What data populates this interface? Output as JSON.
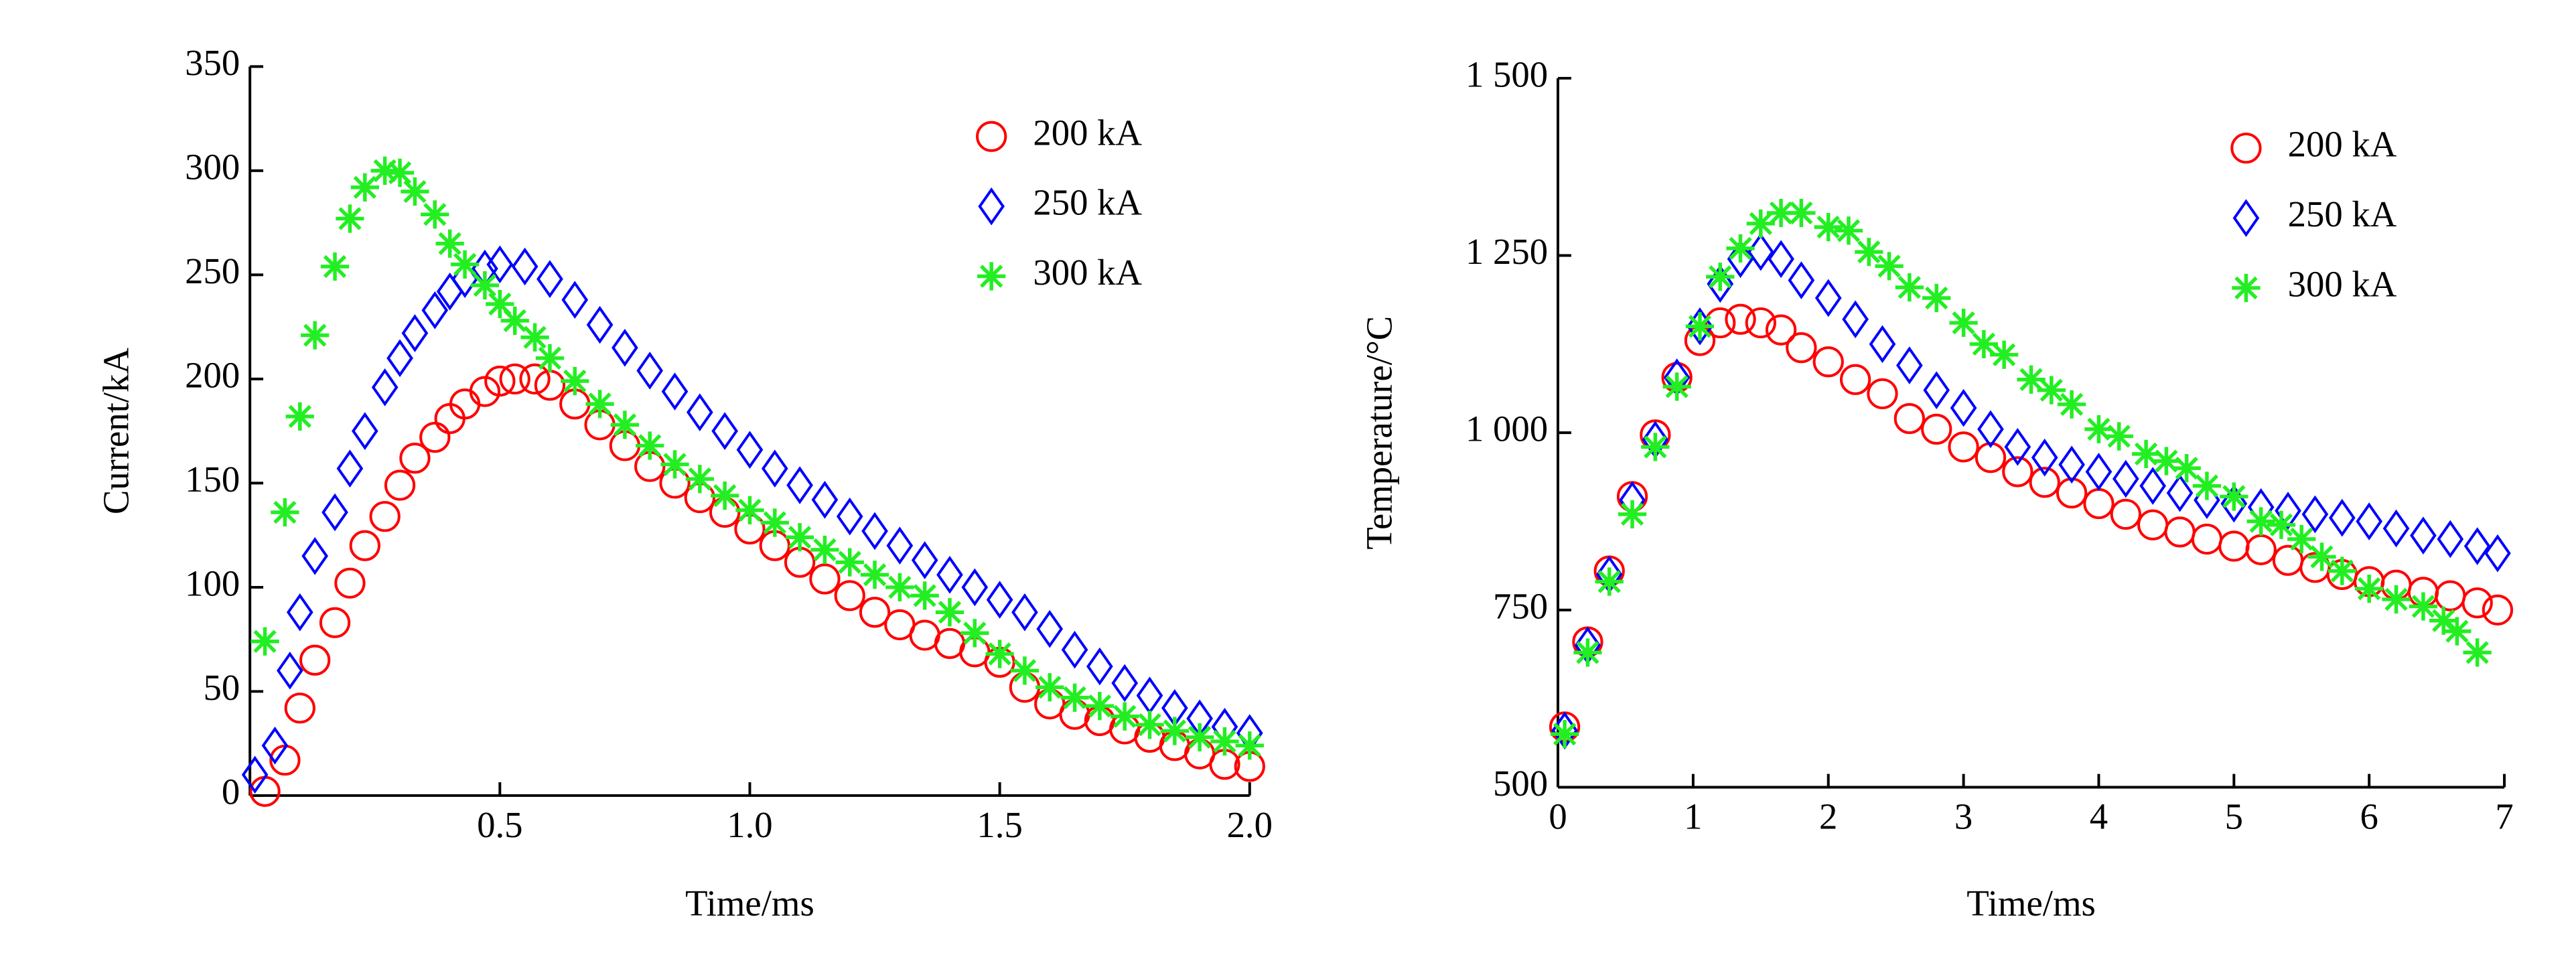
{
  "chart_data": [
    {
      "type": "scatter",
      "x_label": "Time/ms",
      "y_label": "Current/kA",
      "xlim": [
        0,
        2.0
      ],
      "ylim": [
        0,
        350
      ],
      "xticks": [
        0.5,
        {
          "value": 1.0,
          "label": "1.0"
        },
        1.5,
        {
          "value": 2.0,
          "label": "2.0"
        }
      ],
      "yticks": [
        0,
        50,
        100,
        150,
        200,
        250,
        300,
        350
      ],
      "legend": "upper right",
      "series": [
        {
          "name": "200 kA",
          "color": "#ff0000",
          "marker": "circle",
          "x": [
            0.03,
            0.07,
            0.1,
            0.13,
            0.17,
            0.2,
            0.23,
            0.27,
            0.3,
            0.33,
            0.37,
            0.4,
            0.43,
            0.47,
            0.5,
            0.53,
            0.57,
            0.6,
            0.65,
            0.7,
            0.75,
            0.8,
            0.85,
            0.9,
            0.95,
            1.0,
            1.05,
            1.1,
            1.15,
            1.2,
            1.25,
            1.3,
            1.35,
            1.4,
            1.45,
            1.5,
            1.55,
            1.6,
            1.65,
            1.7,
            1.75,
            1.8,
            1.85,
            1.9,
            1.95,
            2.0
          ],
          "values": [
            2,
            17,
            42,
            65,
            83,
            102,
            120,
            134,
            149,
            162,
            172,
            181,
            188,
            194,
            199,
            200,
            200,
            197,
            188,
            178,
            168,
            158,
            150,
            143,
            136,
            128,
            120,
            112,
            104,
            96,
            88,
            82,
            77,
            73,
            69,
            64,
            52,
            44,
            39,
            36,
            32,
            28,
            24,
            20,
            15,
            14
          ]
        },
        {
          "name": "250 kA",
          "color": "#0000ff",
          "marker": "diamond",
          "x": [
            0.01,
            0.05,
            0.08,
            0.1,
            0.13,
            0.17,
            0.2,
            0.23,
            0.27,
            0.3,
            0.33,
            0.37,
            0.4,
            0.43,
            0.47,
            0.5,
            0.55,
            0.6,
            0.65,
            0.7,
            0.75,
            0.8,
            0.85,
            0.9,
            0.95,
            1.0,
            1.05,
            1.1,
            1.15,
            1.2,
            1.25,
            1.3,
            1.35,
            1.4,
            1.45,
            1.5,
            1.55,
            1.6,
            1.65,
            1.7,
            1.75,
            1.8,
            1.85,
            1.9,
            1.95,
            2.0
          ],
          "values": [
            10,
            24,
            60,
            88,
            115,
            136,
            157,
            175,
            196,
            210,
            222,
            233,
            242,
            248,
            253,
            255,
            254,
            248,
            238,
            226,
            215,
            204,
            194,
            184,
            175,
            166,
            157,
            149,
            142,
            134,
            127,
            120,
            113,
            106,
            100,
            94,
            88,
            80,
            70,
            62,
            54,
            48,
            42,
            37,
            33,
            30
          ]
        },
        {
          "name": "300 kA",
          "color": "#22ee22",
          "marker": "star",
          "x": [
            0.03,
            0.07,
            0.1,
            0.13,
            0.17,
            0.2,
            0.23,
            0.27,
            0.3,
            0.33,
            0.37,
            0.4,
            0.43,
            0.47,
            0.5,
            0.53,
            0.57,
            0.6,
            0.65,
            0.7,
            0.75,
            0.8,
            0.85,
            0.9,
            0.95,
            1.0,
            1.05,
            1.1,
            1.15,
            1.2,
            1.25,
            1.3,
            1.35,
            1.4,
            1.45,
            1.5,
            1.55,
            1.6,
            1.65,
            1.7,
            1.75,
            1.8,
            1.85,
            1.9,
            1.95,
            2.0
          ],
          "values": [
            74,
            136,
            182,
            221,
            254,
            277,
            292,
            300,
            299,
            290,
            279,
            265,
            255,
            245,
            236,
            228,
            220,
            210,
            199,
            188,
            178,
            168,
            159,
            152,
            144,
            137,
            131,
            124,
            118,
            112,
            106,
            100,
            96,
            88,
            78,
            68,
            60,
            52,
            47,
            43,
            38,
            34,
            31,
            28,
            26,
            24
          ]
        }
      ]
    },
    {
      "type": "scatter",
      "x_label": "Time/ms",
      "y_label": "Temperature/°C",
      "xlim": [
        0,
        7
      ],
      "ylim": [
        500,
        1500
      ],
      "xticks": [
        0,
        1,
        2,
        3,
        4,
        5,
        6,
        7
      ],
      "yticks": [
        500,
        750,
        {
          "value": 1000,
          "label": "1 000"
        },
        {
          "value": 1250,
          "label": "1 250"
        },
        {
          "value": 1500,
          "label": "1 500"
        }
      ],
      "legend": "upper right",
      "series": [
        {
          "name": "200 kA",
          "color": "#ff0000",
          "marker": "circle",
          "x": [
            0.05,
            0.22,
            0.38,
            0.55,
            0.72,
            0.88,
            1.05,
            1.2,
            1.35,
            1.5,
            1.65,
            1.8,
            2.0,
            2.2,
            2.4,
            2.6,
            2.8,
            3.0,
            3.2,
            3.4,
            3.6,
            3.8,
            4.0,
            4.2,
            4.4,
            4.6,
            4.8,
            5.0,
            5.2,
            5.4,
            5.6,
            5.8,
            6.0,
            6.2,
            6.4,
            6.6,
            6.8,
            6.95
          ],
          "values": [
            585,
            705,
            805,
            910,
            997,
            1078,
            1130,
            1155,
            1160,
            1155,
            1145,
            1120,
            1100,
            1075,
            1055,
            1020,
            1005,
            980,
            965,
            945,
            930,
            915,
            900,
            885,
            870,
            860,
            850,
            840,
            835,
            820,
            810,
            800,
            790,
            785,
            775,
            770,
            760,
            750
          ]
        },
        {
          "name": "250 kA",
          "color": "#0000ff",
          "marker": "diamond",
          "x": [
            0.05,
            0.22,
            0.38,
            0.55,
            0.72,
            0.88,
            1.05,
            1.2,
            1.35,
            1.5,
            1.65,
            1.8,
            2.0,
            2.2,
            2.4,
            2.6,
            2.8,
            3.0,
            3.2,
            3.4,
            3.6,
            3.8,
            4.0,
            4.2,
            4.4,
            4.6,
            4.8,
            5.0,
            5.2,
            5.4,
            5.6,
            5.8,
            6.0,
            6.2,
            6.4,
            6.6,
            6.8,
            6.95
          ],
          "values": [
            580,
            700,
            800,
            905,
            990,
            1078,
            1150,
            1210,
            1245,
            1255,
            1245,
            1215,
            1190,
            1160,
            1125,
            1095,
            1060,
            1035,
            1005,
            980,
            965,
            955,
            945,
            935,
            925,
            915,
            905,
            900,
            895,
            890,
            885,
            880,
            875,
            865,
            855,
            850,
            840,
            830
          ]
        },
        {
          "name": "300 kA",
          "color": "#22ee22",
          "marker": "star",
          "x": [
            0.05,
            0.22,
            0.38,
            0.55,
            0.72,
            0.88,
            1.05,
            1.2,
            1.35,
            1.5,
            1.65,
            1.8,
            2.0,
            2.15,
            2.3,
            2.45,
            2.6,
            2.8,
            3.0,
            3.15,
            3.3,
            3.5,
            3.65,
            3.8,
            4.0,
            4.15,
            4.35,
            4.5,
            4.65,
            4.8,
            5.0,
            5.2,
            5.35,
            5.5,
            5.65,
            5.8,
            6.0,
            6.2,
            6.4,
            6.55,
            6.65,
            6.8
          ],
          "values": [
            575,
            690,
            790,
            885,
            980,
            1065,
            1150,
            1220,
            1260,
            1295,
            1310,
            1310,
            1290,
            1285,
            1255,
            1235,
            1205,
            1190,
            1155,
            1125,
            1110,
            1075,
            1060,
            1040,
            1005,
            995,
            970,
            960,
            950,
            925,
            910,
            875,
            870,
            850,
            825,
            805,
            780,
            765,
            755,
            735,
            720,
            690
          ]
        }
      ]
    }
  ]
}
